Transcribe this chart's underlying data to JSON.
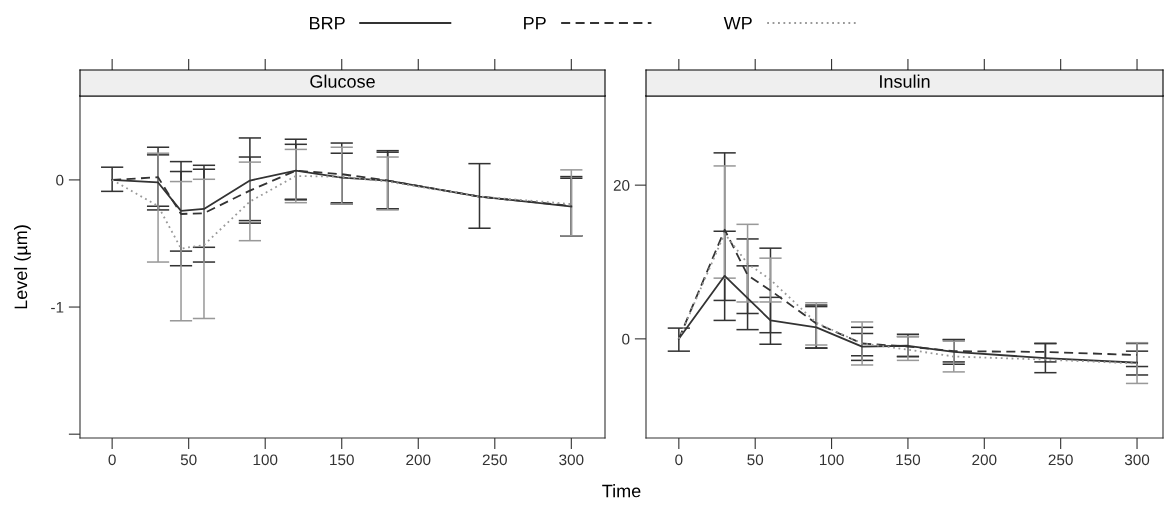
{
  "chart_data": [
    {
      "type": "line",
      "title": "Glucose",
      "xlabel": "Time",
      "ylabel": "Level (µm)",
      "legend": "top",
      "marker": "none",
      "grid": false,
      "x": [
        0,
        30,
        45,
        60,
        90,
        120,
        150,
        180,
        240,
        300
      ],
      "xlim": [
        -21,
        322
      ],
      "xticks": [
        0,
        50,
        100,
        150,
        200,
        250,
        300
      ],
      "ylim": [
        -2.03,
        0.66
      ],
      "yticks": [
        0,
        -1,
        {
          "value": -2,
          "label": null
        }
      ],
      "series": [
        {
          "name": "BRP",
          "color": "#333333",
          "line_style": "solid",
          "values": [
            0,
            -0.02,
            -0.244,
            -0.228,
            -0.005,
            0.073,
            0.018,
            -0.005,
            -0.131,
            -0.21
          ],
          "errors": [
            [
              -0.09,
              0.1
            ],
            [
              -0.236,
              0.197
            ],
            [
              -0.56,
              0.066
            ],
            [
              -0.53,
              0.084
            ],
            [
              -0.32,
              0.33
            ],
            [
              -0.157,
              0.32
            ],
            [
              -0.18,
              0.21
            ],
            [
              -0.228,
              0.23
            ],
            [
              -0.38,
              0.128
            ],
            [
              -0.44,
              0.026
            ]
          ]
        },
        {
          "name": "PP",
          "color": "#333333",
          "line_style": "dashed",
          "values": [
            0,
            0.021,
            -0.268,
            -0.262,
            -0.084,
            0.073,
            0.045,
            -0.005,
            -0.131,
            -0.205
          ],
          "errors": [
            null,
            [
              -0.207,
              0.257
            ],
            [
              -0.675,
              0.144
            ],
            [
              -0.646,
              0.115
            ],
            [
              -0.34,
              0.18
            ],
            [
              -0.152,
              0.28
            ],
            [
              -0.19,
              0.29
            ],
            [
              -0.228,
              0.218
            ],
            null,
            [
              -0.44,
              0.013
            ]
          ]
        },
        {
          "name": "WP",
          "color": "#999999",
          "line_style": "dotted",
          "values": [
            0,
            -0.205,
            -0.54,
            -0.512,
            -0.17,
            0.031,
            0.025,
            -0.013,
            -0.131,
            -0.19
          ],
          "errors": [
            null,
            [
              -0.646,
              0.21
            ],
            [
              -1.108,
              -0.013
            ],
            [
              -1.09,
              0.005
            ],
            [
              -0.478,
              0.14
            ],
            [
              -0.179,
              0.24
            ],
            [
              -0.19,
              0.257
            ],
            [
              -0.236,
              0.18
            ],
            null,
            [
              -0.44,
              0.079
            ]
          ]
        }
      ]
    },
    {
      "type": "line",
      "title": "Insulin",
      "marker": "none",
      "grid": false,
      "x": [
        0,
        30,
        45,
        60,
        90,
        120,
        150,
        180,
        240,
        300
      ],
      "xlim": [
        -21.5,
        317
      ],
      "xticks": [
        0,
        50,
        100,
        150,
        200,
        250,
        300
      ],
      "ylim": [
        -12.9,
        31.6
      ],
      "yticks": [
        0,
        20
      ],
      "series": [
        {
          "color": "#333333",
          "line_style": "solid",
          "values": [
            0,
            8.2,
            5.3,
            2.4,
            1.5,
            -1.0,
            -0.9,
            -1.7,
            -2.5,
            -3.1
          ],
          "errors": [
            [
              -1.6,
              1.4
            ],
            [
              2.4,
              14.0
            ],
            [
              1.2,
              9.5
            ],
            [
              -0.7,
              5.4
            ],
            [
              -1.2,
              4.2
            ],
            [
              -2.8,
              0.7
            ],
            [
              -2.3,
              0.6
            ],
            [
              -3.3,
              -0.1
            ],
            [
              -4.4,
              -0.6
            ],
            [
              -4.7,
              -1.6
            ]
          ]
        },
        {
          "color": "#333333",
          "line_style": "dashed",
          "values": [
            0,
            14.2,
            8.3,
            6.3,
            2.0,
            -0.6,
            -1.0,
            -1.6,
            -1.7,
            -2.1
          ],
          "errors": [
            null,
            [
              5.0,
              24.2
            ],
            [
              3.3,
              13.0
            ],
            [
              0.8,
              11.8
            ],
            [
              -1.2,
              4.4
            ],
            [
              -2.2,
              1.5
            ],
            [
              -2.3,
              0.3
            ],
            [
              -3.0,
              -0.1
            ],
            [
              -3.0,
              -0.6
            ],
            [
              -3.6,
              -0.6
            ]
          ]
        },
        {
          "color": "#999999",
          "line_style": "dotted",
          "values": [
            0,
            13.7,
            9.8,
            7.7,
            2.1,
            -0.6,
            -1.4,
            -2.3,
            -2.7,
            -3.2
          ],
          "errors": [
            null,
            [
              7.9,
              22.5
            ],
            [
              4.8,
              14.9
            ],
            [
              4.8,
              10.5
            ],
            [
              -0.8,
              4.7
            ],
            [
              -3.4,
              2.2
            ],
            [
              -2.8,
              0.3
            ],
            [
              -4.3,
              -0.3
            ],
            null,
            [
              -5.8,
              -0.5
            ]
          ]
        }
      ]
    }
  ]
}
